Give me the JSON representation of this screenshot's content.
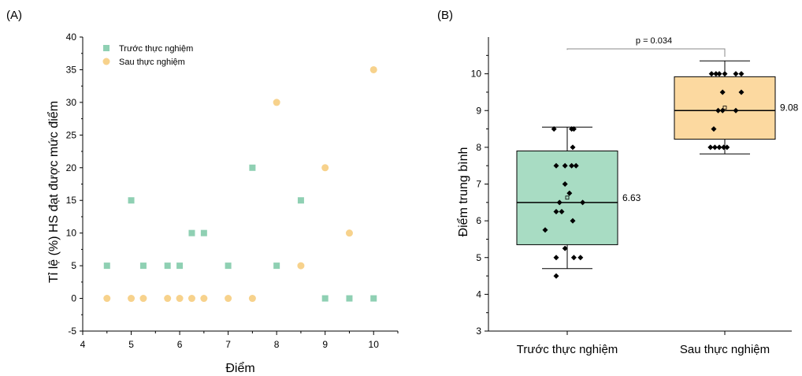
{
  "chart_data": [
    {
      "panel_label": "(A)",
      "type": "scatter",
      "xlabel": "Điểm",
      "ylabel": "Tỉ lệ (%) HS đạt được mức điểm",
      "xlim": [
        4,
        10.5
      ],
      "ylim": [
        -5,
        40
      ],
      "xticks": [
        4,
        5,
        6,
        7,
        8,
        9,
        10
      ],
      "yticks": [
        -5,
        0,
        5,
        10,
        15,
        20,
        25,
        30,
        35,
        40
      ],
      "legend_position": "top-left",
      "series": [
        {
          "name": "Trước thực nghiệm",
          "marker": "square",
          "color": "#8fd0b3",
          "x": [
            4.5,
            5,
            5.25,
            5.75,
            6,
            6.25,
            6.5,
            7,
            7.5,
            8,
            8.5,
            9,
            9.5,
            10
          ],
          "y": [
            5,
            15,
            5,
            5,
            5,
            10,
            10,
            5,
            20,
            5,
            15,
            0,
            0,
            0
          ]
        },
        {
          "name": "Sau thực nghiệm",
          "marker": "circle",
          "color": "#f7d28c",
          "x": [
            4.5,
            5,
            5.25,
            5.75,
            6,
            6.25,
            6.5,
            7,
            7.5,
            8,
            8.5,
            9,
            9.5,
            10
          ],
          "y": [
            0,
            0,
            0,
            0,
            0,
            0,
            0,
            0,
            0,
            30,
            5,
            20,
            10,
            35
          ]
        }
      ]
    },
    {
      "panel_label": "(B)",
      "type": "box",
      "ylabel": "Điểm trung bình",
      "ylim": [
        3,
        11
      ],
      "yticks": [
        3,
        4,
        5,
        6,
        7,
        8,
        9,
        10
      ],
      "categories": [
        "Trước thực nghiệm",
        "Sau thực nghiệm"
      ],
      "significance": "p = 0.034",
      "boxes": [
        {
          "name": "Trước thực nghiệm",
          "color": "#a8dcc3",
          "whisker_low": 4.7,
          "q1": 5.35,
          "median": 6.5,
          "q3": 7.9,
          "whisker_high": 8.55,
          "mean": 6.63,
          "mean_label": "6.63",
          "points": [
            8.5,
            8.5,
            8.5,
            8.0,
            7.5,
            7.5,
            7.5,
            7.5,
            7.0,
            6.75,
            6.5,
            6.5,
            6.25,
            6.25,
            6.0,
            5.75,
            5.25,
            5.0,
            5.0,
            5.0,
            4.5
          ],
          "jitter": [
            -0.12,
            0.04,
            0.06,
            0.05,
            -0.1,
            -0.02,
            0.04,
            0.08,
            -0.02,
            0.02,
            -0.07,
            0.14,
            -0.1,
            -0.05,
            0.05,
            -0.2,
            -0.02,
            -0.1,
            0.06,
            0.12,
            -0.1
          ]
        },
        {
          "name": "Sau thực nghiệm",
          "color": "#fcd9a0",
          "whisker_low": 7.82,
          "q1": 8.22,
          "median": 9.0,
          "q3": 9.92,
          "whisker_high": 10.35,
          "mean": 9.08,
          "mean_label": "9.08",
          "points": [
            10,
            10,
            10,
            10,
            10,
            10,
            9.5,
            9.5,
            9.0,
            9.0,
            9.0,
            8.5,
            8.0,
            8.0,
            8.0,
            8.0,
            8.0
          ],
          "jitter": [
            -0.12,
            -0.08,
            -0.05,
            0.0,
            0.1,
            0.15,
            -0.02,
            0.15,
            -0.06,
            -0.02,
            0.1,
            -0.1,
            -0.13,
            -0.09,
            -0.05,
            -0.01,
            0.02
          ]
        }
      ]
    }
  ]
}
